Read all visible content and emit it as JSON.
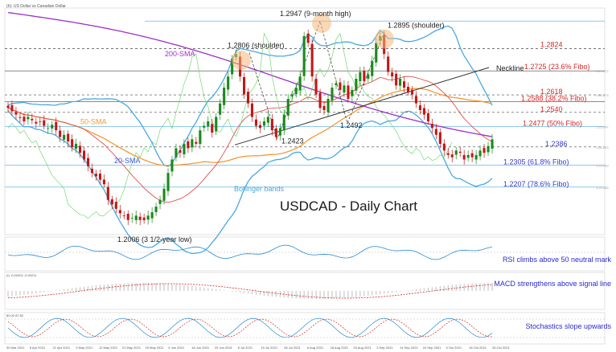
{
  "header": {
    "instrument": "(h): US Dollar vs Canadian Dollar"
  },
  "chart_data": {
    "type": "candlestick",
    "title": "USDCAD - Daily Chart",
    "x_tick_labels": [
      "30 Mar 2021",
      "8 Apr 2021",
      "21 Apr 2021",
      "3 May 2021",
      "12 May 2021",
      "21 May 2021",
      "29 May 2021",
      "9 Jun 2021",
      "18 Jun 2021",
      "29 Jun 2021",
      "8 Jul 2021",
      "19 Jul 2021",
      "28 Jul 2021",
      "6 Aug 2021",
      "18 Aug 2021",
      "25 Aug 2021",
      "3 Sep 2021",
      "14 Sep 2021",
      "24 Sep 2021",
      "5 Oct 2021",
      "18 Oct 2021",
      "26 Oct 2021"
    ],
    "ylim": [
      1.1995,
      1.3005
    ],
    "price_tick_labels": [
      "1.27.272",
      "1.26.273",
      "1.25.247",
      "1.24.253",
      "1.23.259",
      "1.22.266"
    ],
    "closes": [
      1.256,
      1.2545,
      1.253,
      1.2515,
      1.25,
      1.252,
      1.2505,
      1.249,
      1.25,
      1.248,
      1.247,
      1.2485,
      1.246,
      1.243,
      1.244,
      1.241,
      1.2385,
      1.24,
      1.236,
      1.233,
      1.23,
      1.227,
      1.2255,
      1.224,
      1.222,
      1.215,
      1.213,
      1.211,
      1.209,
      1.208,
      1.206,
      1.207,
      1.208,
      1.206,
      1.206,
      1.208,
      1.2095,
      1.212,
      1.215,
      1.22,
      1.227,
      1.233,
      1.238,
      1.236,
      1.24,
      1.238,
      1.242,
      1.24,
      1.246,
      1.248,
      1.25,
      1.245,
      1.252,
      1.258,
      1.265,
      1.27,
      1.278,
      1.28,
      1.27,
      1.262,
      1.258,
      1.252,
      1.248,
      1.247,
      1.25,
      1.252,
      1.246,
      1.243,
      1.247,
      1.253,
      1.26,
      1.262,
      1.265,
      1.27,
      1.288,
      1.285,
      1.27,
      1.262,
      1.256,
      1.255,
      1.26,
      1.265,
      1.267,
      1.264,
      1.266,
      1.26,
      1.264,
      1.269,
      1.272,
      1.268,
      1.271,
      1.277,
      1.285,
      1.288,
      1.28,
      1.272,
      1.27,
      1.266,
      1.269,
      1.265,
      1.263,
      1.262,
      1.258,
      1.255,
      1.253,
      1.25,
      1.247,
      1.244,
      1.24,
      1.237,
      1.235,
      1.234,
      1.237,
      1.236,
      1.233,
      1.235,
      1.234,
      1.235,
      1.237,
      1.236,
      1.239,
      1.242
    ],
    "levels": [
      {
        "label": "1.2947 (9-month high)",
        "value": 1.2947
      },
      {
        "label": "1.2824",
        "value": 1.2824
      },
      {
        "label": "1.2725 (23.6% Fibo)",
        "value": 1.2725
      },
      {
        "label": "1.2618",
        "value": 1.2618
      },
      {
        "label": "1.2588 (38.2% Fibo)",
        "value": 1.2588
      },
      {
        "label": "1.2540",
        "value": 1.254
      },
      {
        "label": "1.2477 (50% Fibo)",
        "value": 1.2477
      },
      {
        "label": "1.2386",
        "value": 1.2386
      },
      {
        "label": "1.2305 (61.8% Fibo)",
        "value": 1.2305
      },
      {
        "label": "1.2207 (78.6% Fibo)",
        "value": 1.2207
      }
    ],
    "annotations": [
      {
        "text": "1.2806 (shoulder)",
        "value": 1.2806
      },
      {
        "text": "1.2895 (shoulder)",
        "value": 1.2895
      },
      {
        "text": "1.2492",
        "value": 1.2492
      },
      {
        "text": "1.2423",
        "value": 1.2423
      },
      {
        "text": "1.2006 (3 1/2-year low)",
        "value": 1.2006
      }
    ],
    "indicator_labels": {
      "sma200": "200-SMA",
      "sma50": "50-SMA",
      "sma20": "20-SMA",
      "bollinger": "Bollinger bands",
      "neckline": "Neckline"
    },
    "subpanels": [
      {
        "name": "RSI",
        "header": "",
        "comment": "RSI climbs above 50 neutral mark"
      },
      {
        "name": "MACD",
        "header": "(I) -0.00202 -0.00211",
        "comment": "MACD strengthens above signal line"
      },
      {
        "name": "Stochastics",
        "header": "80.00 87.82",
        "comment": "Stochastics slope upwards"
      }
    ],
    "colors": {
      "bull": "#1a8a1a",
      "bear": "#c01818",
      "sma200": "#9b30c8",
      "sma50": "#f29a32",
      "sma20": "#e05050",
      "bollinger": "#4aa8e0",
      "fibo": "#d62828",
      "support": "#3a3ac8",
      "indicator_text": "#2a2ad0"
    }
  }
}
